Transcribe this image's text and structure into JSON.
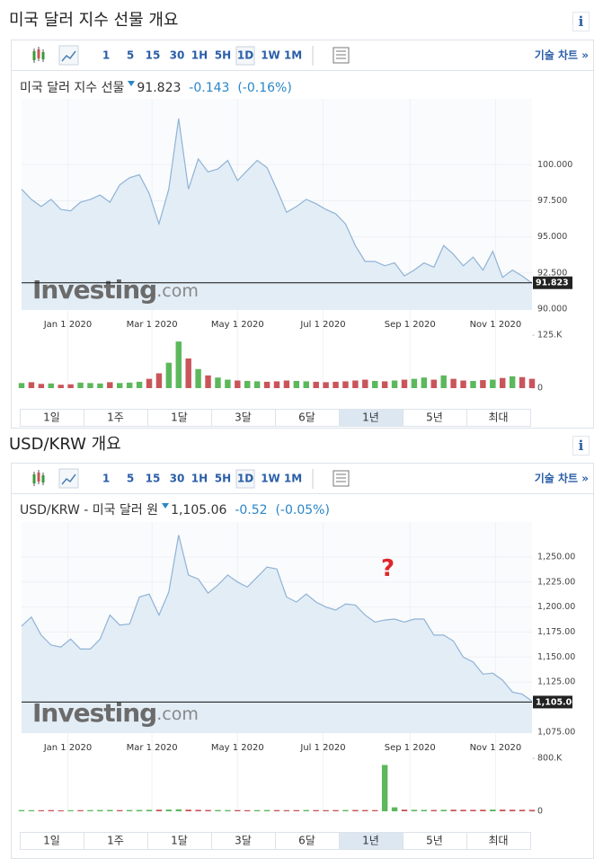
{
  "panels": [
    {
      "heading": "미국 달러 지수 선물 개요",
      "info": "i",
      "toolbar": [
        "1",
        "5",
        "15",
        "30",
        "1H",
        "5H",
        "1D",
        "1W",
        "1M"
      ],
      "selected_interval": 6,
      "tech_chart": "기술 차트 »",
      "quote": {
        "name": "미국 달러 지수 선물",
        "price": "91.823",
        "change": "-0.143",
        "percent": "(-0.16%)"
      },
      "ranges": [
        "1일",
        "1주",
        "1달",
        "3달",
        "6달",
        "1년",
        "5년",
        "최대"
      ],
      "selected_range": 5
    },
    {
      "heading": "USD/KRW 개요",
      "info": "i",
      "toolbar": [
        "1",
        "5",
        "15",
        "30",
        "1H",
        "5H",
        "1D",
        "1W",
        "1M"
      ],
      "selected_interval": 6,
      "tech_chart": "기술 차트 »",
      "quote": {
        "name": "USD/KRW - 미국 달러 원",
        "price": "1,105.06",
        "change": "-0.52",
        "percent": "(-0.05%)"
      },
      "ranges": [
        "1일",
        "1주",
        "1달",
        "3달",
        "6달",
        "1년",
        "5년",
        "최대"
      ],
      "selected_range": 5,
      "annotation": "?"
    }
  ],
  "chart_data": [
    {
      "type": "area",
      "watermark": [
        "Investing",
        ".com"
      ],
      "color": "#8fb3d6",
      "fill": "#e3edf6",
      "grid": true,
      "x": [
        "2019-11-29",
        "2019-12-06",
        "2019-12-13",
        "2019-12-20",
        "2019-12-27",
        "2020-01-03",
        "2020-01-10",
        "2020-01-17",
        "2020-01-24",
        "2020-01-31",
        "2020-02-07",
        "2020-02-14",
        "2020-02-21",
        "2020-02-28",
        "2020-03-06",
        "2020-03-13",
        "2020-03-20",
        "2020-03-27",
        "2020-04-03",
        "2020-04-10",
        "2020-04-17",
        "2020-04-24",
        "2020-05-01",
        "2020-05-08",
        "2020-05-15",
        "2020-05-22",
        "2020-05-29",
        "2020-06-05",
        "2020-06-12",
        "2020-06-19",
        "2020-06-26",
        "2020-07-03",
        "2020-07-10",
        "2020-07-17",
        "2020-07-24",
        "2020-07-31",
        "2020-08-07",
        "2020-08-14",
        "2020-08-21",
        "2020-08-28",
        "2020-09-04",
        "2020-09-11",
        "2020-09-18",
        "2020-09-25",
        "2020-10-02",
        "2020-10-09",
        "2020-10-16",
        "2020-10-23",
        "2020-10-30",
        "2020-11-06",
        "2020-11-13",
        "2020-11-20",
        "2020-11-27"
      ],
      "values": [
        98.3,
        97.6,
        97.1,
        97.6,
        96.9,
        96.8,
        97.4,
        97.6,
        97.9,
        97.4,
        98.6,
        99.1,
        99.3,
        98.0,
        95.9,
        98.3,
        103.2,
        98.3,
        100.4,
        99.5,
        99.7,
        100.3,
        98.9,
        99.6,
        100.3,
        99.8,
        98.3,
        96.7,
        97.1,
        97.6,
        97.3,
        96.9,
        96.6,
        95.9,
        94.4,
        93.3,
        93.3,
        93.0,
        93.2,
        92.3,
        92.7,
        93.2,
        92.9,
        94.4,
        93.8,
        93.0,
        93.6,
        92.7,
        94.0,
        92.2,
        92.7,
        92.3,
        91.8
      ],
      "volume": [
        12000,
        14000,
        10000,
        11000,
        8000,
        9000,
        13000,
        12000,
        11000,
        14000,
        12000,
        13000,
        15000,
        22000,
        35000,
        60000,
        110000,
        70000,
        45000,
        30000,
        25000,
        20000,
        18000,
        17000,
        16000,
        15000,
        16000,
        18000,
        17000,
        16000,
        15000,
        14000,
        15000,
        16000,
        18000,
        20000,
        17000,
        16000,
        18000,
        20000,
        22000,
        25000,
        20000,
        30000,
        22000,
        18000,
        17000,
        19000,
        20000,
        24000,
        28000,
        26000,
        22000
      ],
      "last_value": 91.823,
      "xlim": [
        "2019-11-29",
        "2020-11-27"
      ],
      "xticks": [
        {
          "value": "2020-01-01",
          "label": "Jan 1 2020"
        },
        {
          "value": "2020-03-01",
          "label": "Mar 1 2020"
        },
        {
          "value": "2020-05-01",
          "label": "May 1 2020"
        },
        {
          "value": "2020-07-01",
          "label": "Jul 1 2020"
        },
        {
          "value": "2020-09-01",
          "label": "Sep 1 2020"
        },
        {
          "value": "2020-11-01",
          "label": "Nov 1 2020"
        }
      ],
      "ylim": [
        89.94,
        104.56
      ],
      "yticks": [
        {
          "value": 90,
          "label": "90.000"
        },
        {
          "value": 92.5,
          "label": "92.500"
        },
        {
          "value": 95,
          "label": "95.000"
        },
        {
          "value": 97.5,
          "label": "97.500"
        },
        {
          "value": 100,
          "label": "100.000"
        }
      ],
      "volume_ylim": [
        0,
        140000
      ],
      "volume_ticks": [
        0,
        {
          "value": 125000,
          "label": "125.K"
        }
      ],
      "up_color": "#5cb85c",
      "down_color": "#c9555b"
    },
    {
      "type": "area",
      "watermark": [
        "Investing",
        ".com"
      ],
      "color": "#8fb3d6",
      "fill": "#e3edf6",
      "grid": true,
      "x": [
        "2019-11-29",
        "2019-12-06",
        "2019-12-13",
        "2019-12-20",
        "2019-12-27",
        "2020-01-03",
        "2020-01-10",
        "2020-01-17",
        "2020-01-24",
        "2020-01-31",
        "2020-02-07",
        "2020-02-14",
        "2020-02-21",
        "2020-02-28",
        "2020-03-06",
        "2020-03-13",
        "2020-03-20",
        "2020-03-27",
        "2020-04-03",
        "2020-04-10",
        "2020-04-17",
        "2020-04-24",
        "2020-05-01",
        "2020-05-08",
        "2020-05-15",
        "2020-05-22",
        "2020-05-29",
        "2020-06-05",
        "2020-06-12",
        "2020-06-19",
        "2020-06-26",
        "2020-07-03",
        "2020-07-10",
        "2020-07-17",
        "2020-07-24",
        "2020-07-31",
        "2020-08-07",
        "2020-08-14",
        "2020-08-21",
        "2020-08-28",
        "2020-09-04",
        "2020-09-11",
        "2020-09-18",
        "2020-09-25",
        "2020-10-02",
        "2020-10-09",
        "2020-10-16",
        "2020-10-23",
        "2020-10-30",
        "2020-11-06",
        "2020-11-13",
        "2020-11-20",
        "2020-11-27"
      ],
      "values": [
        1181,
        1190,
        1172,
        1162,
        1160,
        1168,
        1158,
        1158,
        1168,
        1192,
        1182,
        1183,
        1210,
        1213,
        1192,
        1215,
        1272,
        1232,
        1228,
        1214,
        1222,
        1232,
        1225,
        1220,
        1230,
        1240,
        1238,
        1210,
        1205,
        1213,
        1205,
        1200,
        1197,
        1203,
        1202,
        1192,
        1185,
        1187,
        1188,
        1185,
        1188,
        1188,
        1172,
        1172,
        1166,
        1150,
        1145,
        1133,
        1134,
        1127,
        1115,
        1113,
        1106
      ],
      "volume": [
        18000,
        17000,
        16000,
        18000,
        15000,
        16000,
        17000,
        18000,
        19000,
        20000,
        18000,
        19000,
        20000,
        22000,
        24000,
        26000,
        30000,
        25000,
        22000,
        20000,
        19000,
        18000,
        18000,
        17000,
        18000,
        19000,
        18000,
        17000,
        18000,
        19000,
        18000,
        17000,
        18000,
        19000,
        20000,
        19000,
        18000,
        700000,
        60000,
        25000,
        22000,
        21000,
        20000,
        22000,
        24000,
        23000,
        22000,
        24000,
        26000,
        25000,
        24000,
        23000,
        22000
      ],
      "last_value": {
        "value": 1105.06,
        "label": "1,105.06"
      },
      "xlim": [
        "2019-11-29",
        "2020-11-27"
      ],
      "xticks": [
        {
          "value": "2020-01-01",
          "label": "Jan 1 2020"
        },
        {
          "value": "2020-03-01",
          "label": "Mar 1 2020"
        },
        {
          "value": "2020-05-01",
          "label": "May 1 2020"
        },
        {
          "value": "2020-07-01",
          "label": "Jul 1 2020"
        },
        {
          "value": "2020-09-01",
          "label": "Sep 1 2020"
        },
        {
          "value": "2020-11-01",
          "label": "Nov 1 2020"
        }
      ],
      "ylim": [
        1074,
        1285
      ],
      "yticks": [
        {
          "value": 1075,
          "label": "1,075.00"
        },
        {
          "value": 1125,
          "label": "1,125.00"
        },
        {
          "value": 1150,
          "label": "1,150.00"
        },
        {
          "value": 1175,
          "label": "1,175.00"
        },
        {
          "value": 1200,
          "label": "1,200.00"
        },
        {
          "value": 1225,
          "label": "1,225.00"
        },
        {
          "value": 1250,
          "label": "1,250.00"
        }
      ],
      "volume_ylim": [
        0,
        896000
      ],
      "volume_ticks": [
        0,
        {
          "value": 800000,
          "label": "800.K"
        }
      ],
      "up_color": "#5cb85c",
      "down_color": "#c9555b"
    }
  ]
}
